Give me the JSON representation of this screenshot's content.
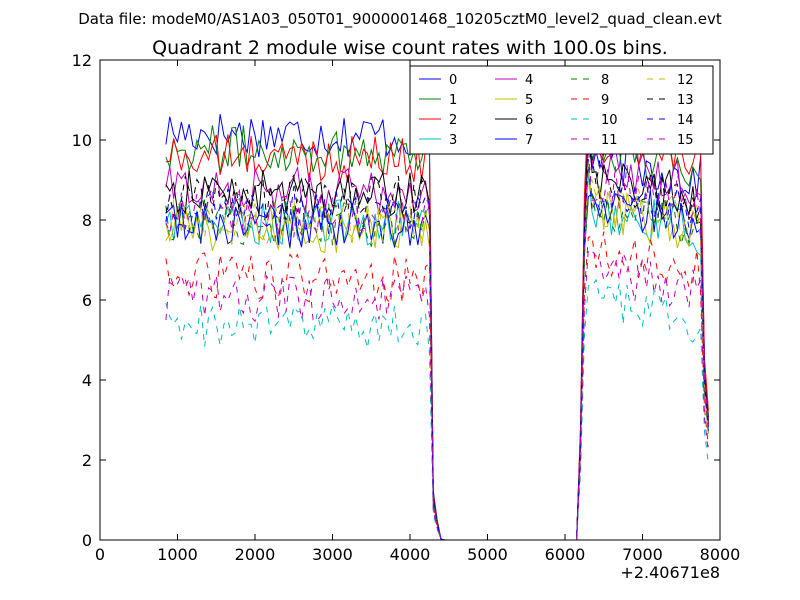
{
  "chart_data": {
    "type": "line",
    "suptitle": "Data file: modeM0/AS1A03_050T01_9000001468_10205cztM0_level2_quad_clean.evt",
    "title": "Quadrant 2 module wise count rates with 100.0s bins.",
    "xlabel": "",
    "ylabel": "",
    "x_offset_label": "+2.40671e8",
    "xlim": [
      0,
      8000
    ],
    "ylim": [
      0,
      12
    ],
    "xticks": [
      0,
      1000,
      2000,
      3000,
      4000,
      5000,
      6000,
      7000,
      8000
    ],
    "xtick_labels": [
      "0",
      "1000",
      "2000",
      "3000",
      "4000",
      "5000",
      "6000",
      "7000",
      "8000"
    ],
    "yticks": [
      0,
      2,
      4,
      6,
      8,
      10,
      12
    ],
    "ytick_labels": [
      "0",
      "2",
      "4",
      "6",
      "8",
      "10",
      "12"
    ],
    "legend_location": "top-right",
    "grid": false,
    "series": [
      {
        "name": "0",
        "color": "#0000ff",
        "style": "solid",
        "levels": [
          10.2,
          9.6
        ]
      },
      {
        "name": "1",
        "color": "#008000",
        "style": "solid",
        "levels": [
          9.8,
          9.8
        ]
      },
      {
        "name": "2",
        "color": "#ff0000",
        "style": "solid",
        "levels": [
          9.6,
          10.1
        ]
      },
      {
        "name": "3",
        "color": "#00bfbf",
        "style": "solid",
        "levels": [
          8.0,
          8.3
        ]
      },
      {
        "name": "4",
        "color": "#bf00bf",
        "style": "solid",
        "levels": [
          8.8,
          9.4
        ]
      },
      {
        "name": "5",
        "color": "#bfbf00",
        "style": "solid",
        "levels": [
          7.8,
          8.3
        ]
      },
      {
        "name": "6",
        "color": "#000000",
        "style": "solid",
        "levels": [
          8.7,
          9.1
        ]
      },
      {
        "name": "7",
        "color": "#0000ff",
        "style": "solid",
        "levels": [
          7.9,
          8.5
        ]
      },
      {
        "name": "8",
        "color": "#008000",
        "style": "dashed",
        "levels": [
          8.0,
          8.4
        ]
      },
      {
        "name": "9",
        "color": "#ff0000",
        "style": "dashed",
        "levels": [
          6.6,
          7.3
        ]
      },
      {
        "name": "10",
        "color": "#00bfbf",
        "style": "dashed",
        "levels": [
          5.4,
          6.0
        ]
      },
      {
        "name": "11",
        "color": "#bf00bf",
        "style": "dashed",
        "levels": [
          6.1,
          6.8
        ]
      },
      {
        "name": "12",
        "color": "#bfbf00",
        "style": "dashed",
        "levels": [
          8.0,
          8.5
        ]
      },
      {
        "name": "13",
        "color": "#000000",
        "style": "dashed",
        "levels": [
          8.6,
          9.0
        ]
      },
      {
        "name": "14",
        "color": "#0000ff",
        "style": "dashed",
        "levels": [
          8.3,
          8.8
        ]
      },
      {
        "name": "15",
        "color": "#bf00bf",
        "style": "dashed",
        "levels": [
          8.2,
          9.0
        ]
      }
    ],
    "segments": {
      "first_start": 850,
      "first_end": 4250,
      "step": 50,
      "drop_x": [
        4300,
        4350,
        4400
      ],
      "zero_from": 4450,
      "zero_to": 6150,
      "rise_x": [
        6200,
        6250
      ],
      "second_start": 6300,
      "second_end": 7750,
      "end_drop_x": [
        7800,
        7850
      ]
    }
  }
}
